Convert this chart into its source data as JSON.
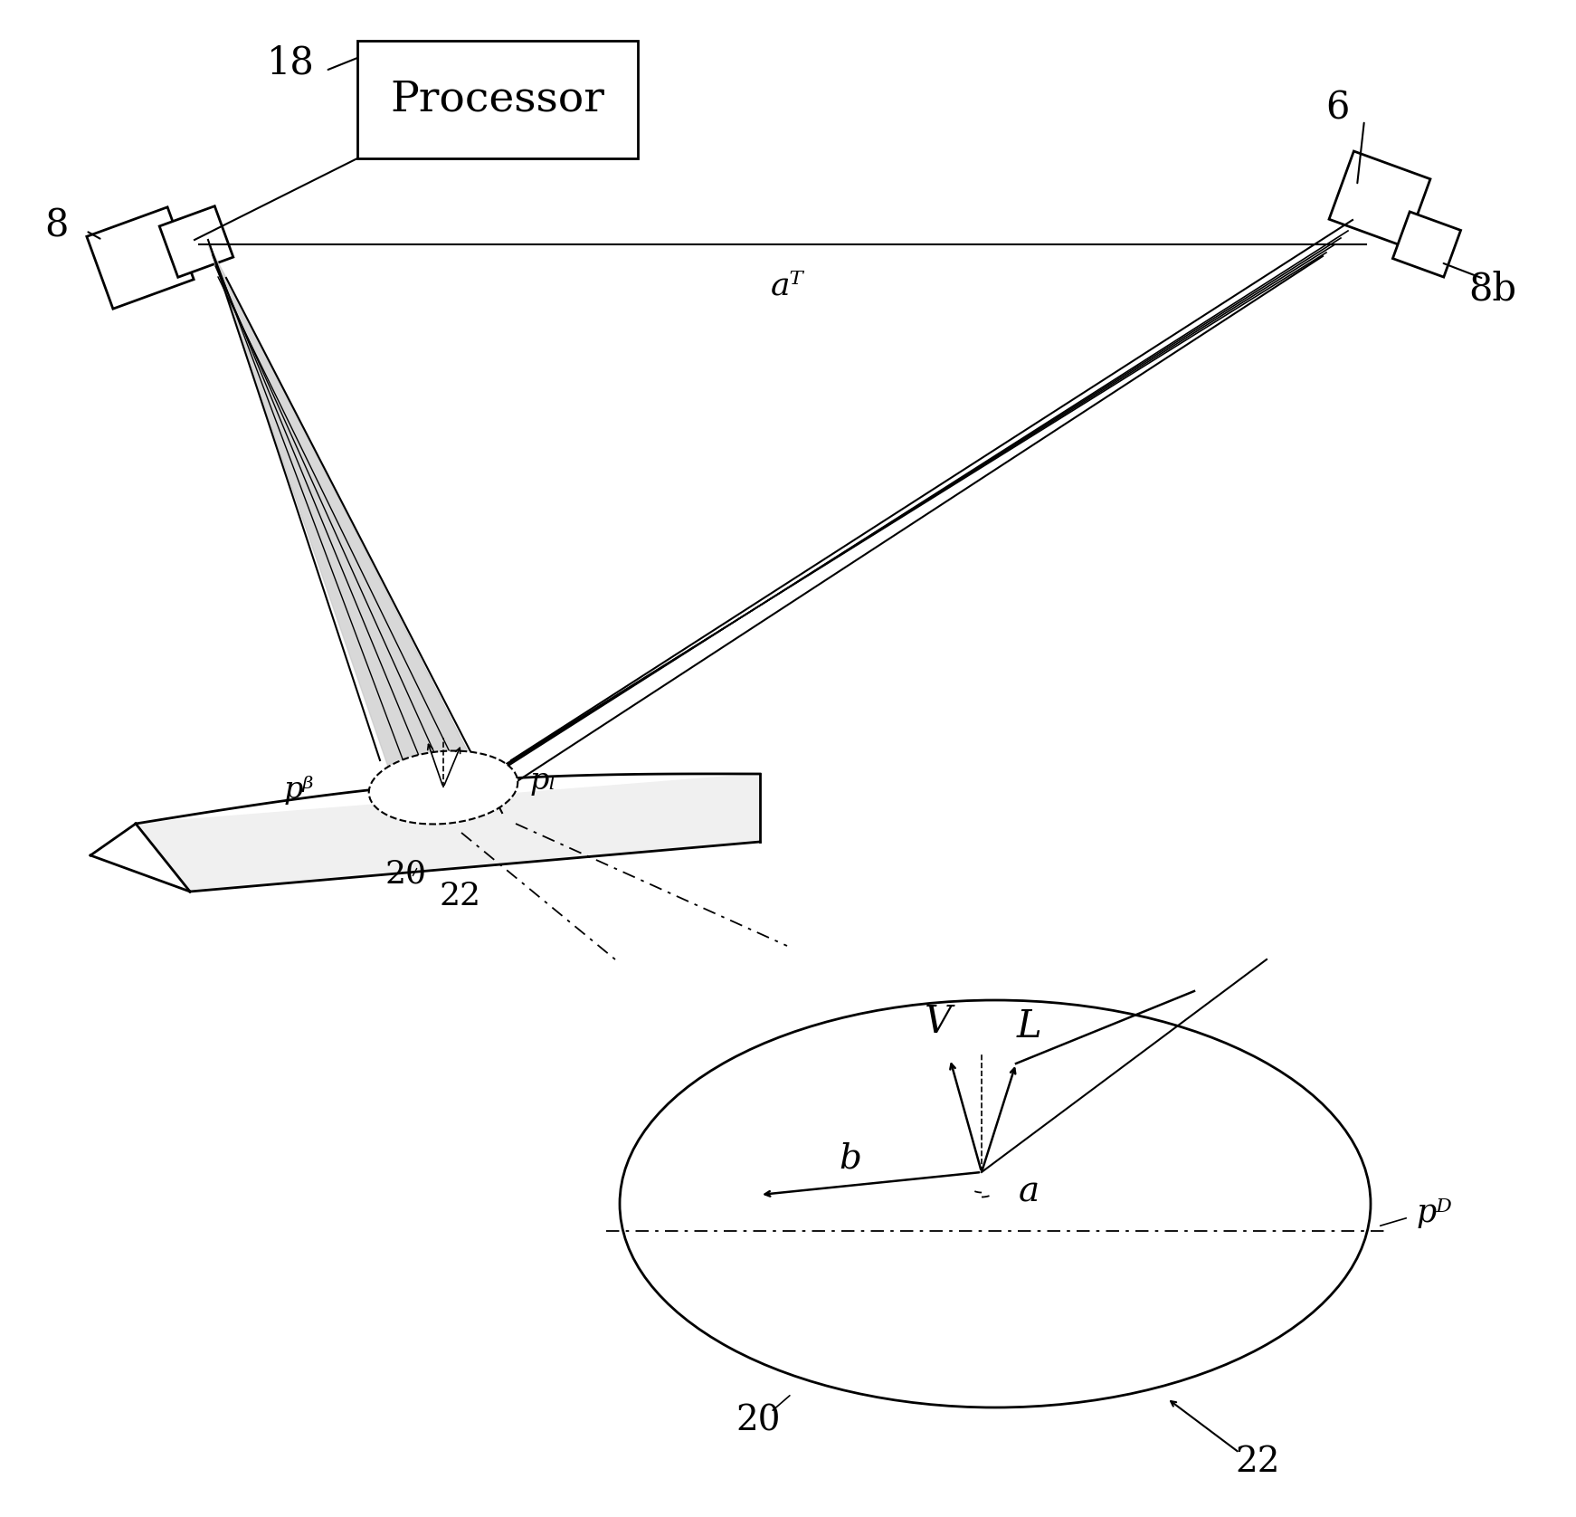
{
  "bg_color": "#ffffff",
  "line_color": "#000000",
  "figsize": [
    17.42,
    16.76
  ],
  "dpi": 100,
  "labels": {
    "processor_text": "Processor",
    "label_18": "18",
    "label_8": "8",
    "label_6": "6",
    "label_8b": "8b",
    "label_aT": "aᵀ",
    "label_pV": "pᵝ",
    "label_pL": "pₗ",
    "label_20_small": "20",
    "label_22_small": "22",
    "label_V": "V",
    "label_L": "L",
    "label_b": "b",
    "label_a": "a",
    "label_pD": "pᴰ",
    "label_20_big": "20",
    "label_22_big": "22"
  }
}
